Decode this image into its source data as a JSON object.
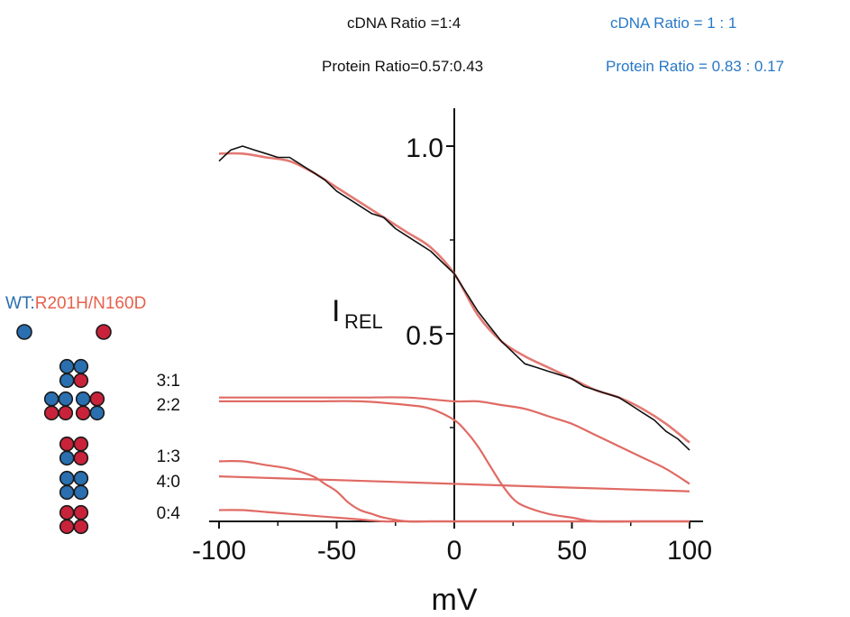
{
  "header": {
    "cdna_ratio_left": "cDNA Ratio =1:4",
    "protein_ratio_left": "Protein Ratio=0.57:0.43",
    "cdna_ratio_right": "cDNA  Ratio = 1 : 1",
    "protein_ratio_right": "Protein  Ratio = 0.83 : 0.17"
  },
  "colors": {
    "fit_red": "#e06a64",
    "trace_black": "#111111",
    "wt_blue": "#2a6fb0",
    "mutant_red": "#c8233a",
    "header_blue": "#2878c8",
    "legend_mutant_text": "#e8604c"
  },
  "legend": {
    "wt_label": "WT:",
    "mutant_label": "R201H/N160D",
    "stoichiometry_labels": [
      "3:1",
      "2:2",
      "1:3",
      "4:0",
      "0:4"
    ]
  },
  "chart_data": {
    "type": "line",
    "xlabel": "mV",
    "ylabel": "I",
    "ylabel_subscript": "REL",
    "xlim": [
      -100,
      100
    ],
    "ylim": [
      0,
      1.0
    ],
    "x_ticks": [
      -100,
      -50,
      0,
      50,
      100
    ],
    "y_ticks": [
      0.5,
      1.0
    ],
    "y_tick_labels": [
      "0.5",
      "1.0"
    ],
    "series": [
      {
        "kind": "data",
        "x": [
          -100,
          -95,
          -90,
          -85,
          -80,
          -75,
          -70,
          -65,
          -60,
          -55,
          -50,
          -45,
          -40,
          -35,
          -30,
          -25,
          -20,
          -15,
          -10,
          -5,
          0,
          5,
          10,
          15,
          20,
          25,
          30,
          35,
          40,
          45,
          50,
          55,
          60,
          65,
          70,
          75,
          80,
          85,
          90,
          95,
          100
        ],
        "y": [
          0.96,
          0.99,
          1.0,
          0.99,
          0.98,
          0.97,
          0.97,
          0.95,
          0.93,
          0.91,
          0.88,
          0.86,
          0.84,
          0.82,
          0.81,
          0.78,
          0.76,
          0.74,
          0.72,
          0.69,
          0.66,
          0.61,
          0.56,
          0.52,
          0.48,
          0.45,
          0.42,
          0.41,
          0.4,
          0.39,
          0.38,
          0.36,
          0.35,
          0.34,
          0.33,
          0.31,
          0.29,
          0.27,
          0.24,
          0.22,
          0.19
        ]
      },
      {
        "kind": "fit",
        "x": [
          -100,
          -90,
          -80,
          -70,
          -60,
          -50,
          -40,
          -30,
          -20,
          -10,
          0,
          10,
          20,
          30,
          40,
          50,
          60,
          70,
          80,
          90,
          100
        ],
        "y": [
          0.98,
          0.98,
          0.97,
          0.96,
          0.93,
          0.89,
          0.85,
          0.81,
          0.77,
          0.73,
          0.66,
          0.55,
          0.48,
          0.44,
          0.41,
          0.38,
          0.35,
          0.33,
          0.3,
          0.26,
          0.21
        ]
      },
      {
        "label": "3:1",
        "x": [
          -100,
          -80,
          -60,
          -40,
          -20,
          0,
          10,
          20,
          30,
          40,
          50,
          60,
          70,
          80,
          90,
          100
        ],
        "y": [
          0.33,
          0.33,
          0.33,
          0.33,
          0.33,
          0.32,
          0.32,
          0.31,
          0.3,
          0.28,
          0.26,
          0.23,
          0.2,
          0.17,
          0.14,
          0.1
        ]
      },
      {
        "label": "2:2",
        "x": [
          -100,
          -80,
          -60,
          -40,
          -20,
          -10,
          0,
          5,
          10,
          15,
          20,
          25,
          30,
          40,
          50,
          60,
          80,
          100
        ],
        "y": [
          0.32,
          0.32,
          0.32,
          0.32,
          0.31,
          0.3,
          0.27,
          0.24,
          0.2,
          0.15,
          0.1,
          0.06,
          0.04,
          0.02,
          0.01,
          0.0,
          0.0,
          0.0
        ]
      },
      {
        "label": "1:3",
        "x": [
          -100,
          -90,
          -80,
          -70,
          -60,
          -55,
          -50,
          -45,
          -40,
          -35,
          -30,
          -20,
          -10,
          0,
          20,
          50,
          100
        ],
        "y": [
          0.16,
          0.16,
          0.15,
          0.14,
          0.12,
          0.1,
          0.08,
          0.05,
          0.03,
          0.02,
          0.01,
          0.0,
          0.0,
          0.0,
          0.0,
          0.0,
          0.0
        ]
      },
      {
        "label": "4:0",
        "x": [
          -100,
          -50,
          0,
          50,
          100
        ],
        "y": [
          0.12,
          0.11,
          0.1,
          0.09,
          0.08
        ]
      },
      {
        "label": "0:4",
        "x": [
          -100,
          -90,
          -80,
          -70,
          -60,
          -50,
          -40,
          -30,
          -20,
          -10,
          0,
          20,
          50,
          100
        ],
        "y": [
          0.03,
          0.03,
          0.025,
          0.02,
          0.015,
          0.01,
          0.005,
          0.0,
          0.0,
          0.0,
          0.0,
          0.0,
          0.0,
          0.0
        ]
      }
    ]
  }
}
